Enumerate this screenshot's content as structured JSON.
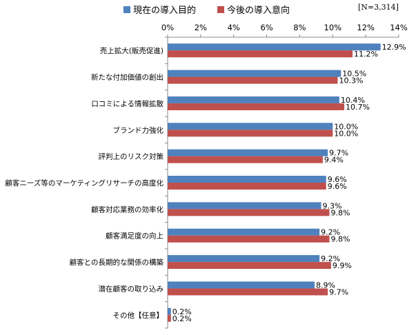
{
  "chart_data": {
    "type": "bar",
    "orientation": "horizontal",
    "note": "[N=3,314]",
    "categories": [
      "売上拡大(販売促進)",
      "新たな付加価値の創出",
      "口コミによる情報拡散",
      "ブランド力強化",
      "評判上のリスク対策",
      "顧客ニーズ等のマーケティングリサーチの高度化",
      "顧客対応業務の効率化",
      "顧客満足度の向上",
      "顧客との長期的な関係の構築",
      "潜在顧客の取り込み",
      "その他【任意】"
    ],
    "series": [
      {
        "name": "現在の導入目的",
        "color": "#4f81bd",
        "values": [
          12.9,
          10.5,
          10.4,
          10.0,
          9.7,
          9.6,
          9.3,
          9.2,
          9.2,
          8.9,
          0.2
        ],
        "labels": [
          "12.9%",
          "10.5%",
          "10.4%",
          "10.0%",
          "9.7%",
          "9.6%",
          "9.3%",
          "9.2%",
          "9.2%",
          "8.9%",
          "0.2%"
        ]
      },
      {
        "name": "今後の導入意向",
        "color": "#c0504d",
        "values": [
          11.2,
          10.3,
          10.7,
          10.0,
          9.4,
          9.6,
          9.8,
          9.8,
          9.9,
          9.7,
          0.2
        ],
        "labels": [
          "11.2%",
          "10.3%",
          "10.7%",
          "10.0%",
          "9.4%",
          "9.6%",
          "9.8%",
          "9.8%",
          "9.9%",
          "9.7%",
          "0.2%"
        ]
      }
    ],
    "xlim": [
      0,
      14
    ],
    "xticks": [
      "0%",
      "2%",
      "4%",
      "6%",
      "8%",
      "10%",
      "12%",
      "14%"
    ],
    "grid": false,
    "legend_position": "top"
  }
}
